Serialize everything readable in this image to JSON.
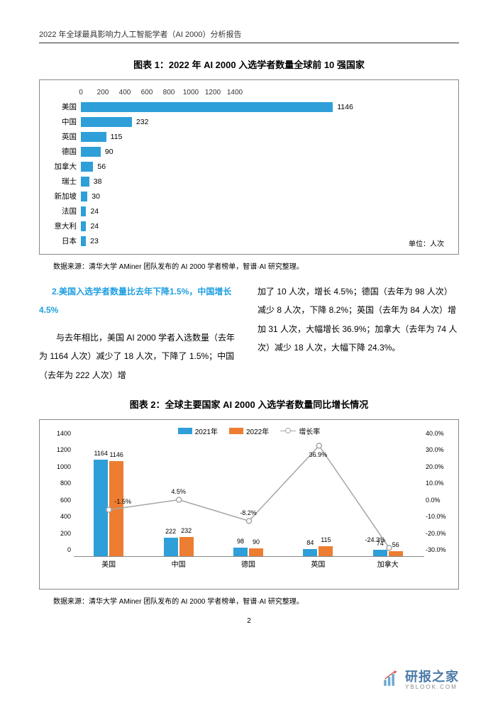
{
  "header": "2022 年全球最具影响力人工智能学者（AI 2000）分析报告",
  "chart1": {
    "title": "图表 1：2022 年 AI 2000 入选学者数量全球前 10 强国家",
    "type": "bar_horizontal",
    "x_ticks": [
      0,
      200,
      400,
      600,
      800,
      1000,
      1200,
      1400
    ],
    "x_max": 1400,
    "bar_color": "#2e9fd9",
    "categories": [
      "美国",
      "中国",
      "英国",
      "德国",
      "加拿大",
      "瑞士",
      "新加坡",
      "法国",
      "意大利",
      "日本"
    ],
    "values": [
      1146,
      232,
      115,
      90,
      56,
      38,
      30,
      24,
      24,
      23
    ],
    "unit_label": "单位：人次",
    "source": "数据来源：清华大学 AMiner 团队发布的 AI 2000 学者榜单，智谱·AI 研究整理。"
  },
  "text": {
    "section_head": "2.美国入选学者数量比去年下降1.5%，中国增长 4.5%",
    "col1": "与去年相比，美国 AI 2000 学者入选数量（去年为 1164 人次）减少了 18 人次，下降了 1.5%；中国（去年为 222 人次）增",
    "col2": "加了 10 人次，增长 4.5%；德国（去年为 98 人次）减少 8 人次，下降 8.2%；英国（去年为 84 人次）增加 31 人次，大幅增长 36.9%；加拿大（去年为 74 人次）减少 18 人次，大幅下降 24.3%。"
  },
  "chart2": {
    "title": "图表 2：全球主要国家 AI 2000 入选学者数量同比增长情况",
    "type": "bar_and_line",
    "legend": {
      "s2021": "2021年",
      "s2022": "2022年",
      "growth": "增长率"
    },
    "colors": {
      "s2021": "#2e9fd9",
      "s2022": "#ed7d31",
      "line": "#a6a6a6"
    },
    "categories": [
      "美国",
      "中国",
      "德国",
      "英国",
      "加拿大"
    ],
    "v2021": [
      1164,
      222,
      98,
      84,
      74
    ],
    "v2022": [
      1146,
      232,
      90,
      115,
      56
    ],
    "growth": [
      -1.5,
      4.5,
      -8.2,
      36.9,
      -24.3
    ],
    "growth_labels": [
      "-1.5%",
      "4.5%",
      "-8.2%",
      "36.9%",
      "-24.3%"
    ],
    "y_left": {
      "min": 0,
      "max": 1400,
      "step": 200
    },
    "y_right": {
      "min": -30.0,
      "max": 40.0,
      "step": 10.0
    },
    "source": "数据来源：清华大学 AMiner 团队发布的 AI 2000 学者榜单，智谱·AI 研究整理。"
  },
  "pagenum": "2",
  "logo": {
    "name": "研报之家",
    "sub": "YBLOOK.COM"
  }
}
